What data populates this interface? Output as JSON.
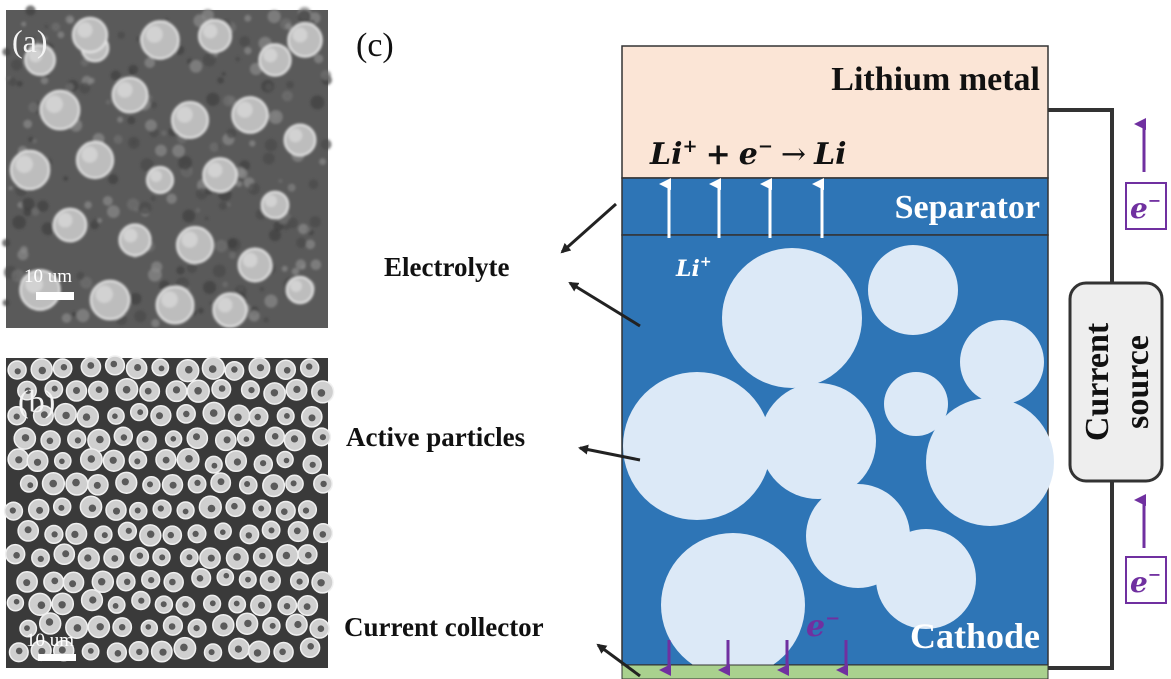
{
  "panels": {
    "a": {
      "label": "(a)",
      "scale_bar": "10 um"
    },
    "b": {
      "label": "(b)",
      "scale_bar": "10 um"
    },
    "c": {
      "label": "(c)"
    }
  },
  "diagram": {
    "lithium_metal": "Lithium metal",
    "reaction": {
      "li": "Li",
      "plus_sup": "+",
      "op1": "+",
      "e": "e",
      "minus_sup": "−",
      "arrow": "→",
      "product": "Li"
    },
    "separator": "Separator",
    "li_ion": {
      "base": "Li",
      "sup": "+"
    },
    "cathode": "Cathode",
    "electron_inside": {
      "base": "e",
      "sup": "−"
    },
    "current_source": {
      "line1": "Current",
      "line2": "source"
    },
    "electron_box_top": {
      "base": "e",
      "sup": "−"
    },
    "electron_box_bottom": {
      "base": "e",
      "sup": "−"
    }
  },
  "callouts": {
    "electrolyte": "Electrolyte",
    "active_particles": "Active particles",
    "current_collector": "Current collector"
  },
  "colors": {
    "lithium_metal": "#fbe5d6",
    "separator": "#2e75b6",
    "cathode": "#2e75b6",
    "particle": "#dce9f7",
    "collector": "#a9d18e",
    "electron": "#7030a0"
  }
}
